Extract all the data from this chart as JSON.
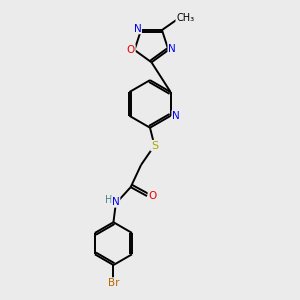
{
  "bg_color": "#ebebeb",
  "bond_color": "#000000",
  "atom_colors": {
    "N": "#0000ee",
    "O": "#ee0000",
    "S": "#aaaa00",
    "Br": "#bb6600",
    "H": "#448888",
    "C": "#000000"
  },
  "lw": 1.4
}
